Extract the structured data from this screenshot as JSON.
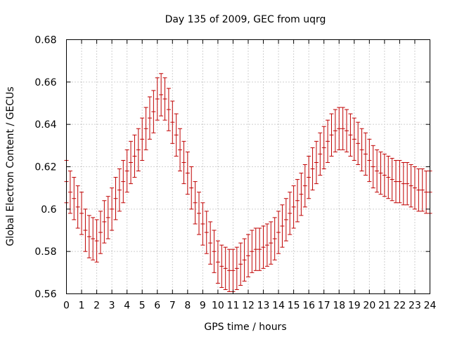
{
  "chart_data": {
    "type": "errorbar",
    "title": "Day 135 of 2009, GEC from uqrg",
    "xlabel": "GPS time / hours",
    "ylabel": "Global Electron Content / GECUs",
    "xlim": [
      0,
      24
    ],
    "ylim": [
      0.56,
      0.68
    ],
    "xticks": [
      "0",
      "1",
      "2",
      "3",
      "4",
      "5",
      "6",
      "7",
      "8",
      "9",
      "10",
      "11",
      "12",
      "13",
      "14",
      "15",
      "16",
      "17",
      "18",
      "19",
      "20",
      "21",
      "22",
      "23",
      "24"
    ],
    "yticks": [
      "0.56",
      "0.58",
      "0.6",
      "0.62",
      "0.64",
      "0.66",
      "0.68"
    ],
    "grid": true,
    "error": 0.01,
    "series": [
      {
        "name": "GEC",
        "color": "#c00000",
        "x": [
          0,
          0.25,
          0.5,
          0.75,
          1,
          1.25,
          1.5,
          1.75,
          2,
          2.25,
          2.5,
          2.75,
          3,
          3.25,
          3.5,
          3.75,
          4,
          4.25,
          4.5,
          4.75,
          5,
          5.25,
          5.5,
          5.75,
          6,
          6.25,
          6.5,
          6.75,
          7,
          7.25,
          7.5,
          7.75,
          8,
          8.25,
          8.5,
          8.75,
          9,
          9.25,
          9.5,
          9.75,
          10,
          10.25,
          10.5,
          10.75,
          11,
          11.25,
          11.5,
          11.75,
          12,
          12.25,
          12.5,
          12.75,
          13,
          13.25,
          13.5,
          13.75,
          14,
          14.25,
          14.5,
          14.75,
          15,
          15.25,
          15.5,
          15.75,
          16,
          16.25,
          16.5,
          16.75,
          17,
          17.25,
          17.5,
          17.75,
          18,
          18.25,
          18.5,
          18.75,
          19,
          19.25,
          19.5,
          19.75,
          20,
          20.25,
          20.5,
          20.75,
          21,
          21.25,
          21.5,
          21.75,
          22,
          22.25,
          22.5,
          22.75,
          23,
          23.25,
          23.5,
          23.75,
          24
        ],
        "y": [
          0.613,
          0.608,
          0.605,
          0.601,
          0.598,
          0.59,
          0.587,
          0.586,
          0.585,
          0.589,
          0.594,
          0.596,
          0.6,
          0.605,
          0.609,
          0.613,
          0.618,
          0.622,
          0.625,
          0.628,
          0.633,
          0.638,
          0.643,
          0.646,
          0.652,
          0.654,
          0.652,
          0.647,
          0.641,
          0.635,
          0.628,
          0.622,
          0.617,
          0.61,
          0.603,
          0.598,
          0.593,
          0.589,
          0.584,
          0.58,
          0.575,
          0.573,
          0.572,
          0.571,
          0.571,
          0.572,
          0.574,
          0.576,
          0.578,
          0.58,
          0.581,
          0.581,
          0.582,
          0.583,
          0.584,
          0.586,
          0.589,
          0.592,
          0.595,
          0.598,
          0.601,
          0.604,
          0.607,
          0.611,
          0.615,
          0.619,
          0.622,
          0.626,
          0.629,
          0.632,
          0.635,
          0.637,
          0.638,
          0.638,
          0.637,
          0.635,
          0.633,
          0.631,
          0.628,
          0.626,
          0.623,
          0.62,
          0.618,
          0.617,
          0.616,
          0.615,
          0.614,
          0.613,
          0.613,
          0.612,
          0.612,
          0.611,
          0.61,
          0.609,
          0.609,
          0.608,
          0.608
        ]
      }
    ]
  }
}
